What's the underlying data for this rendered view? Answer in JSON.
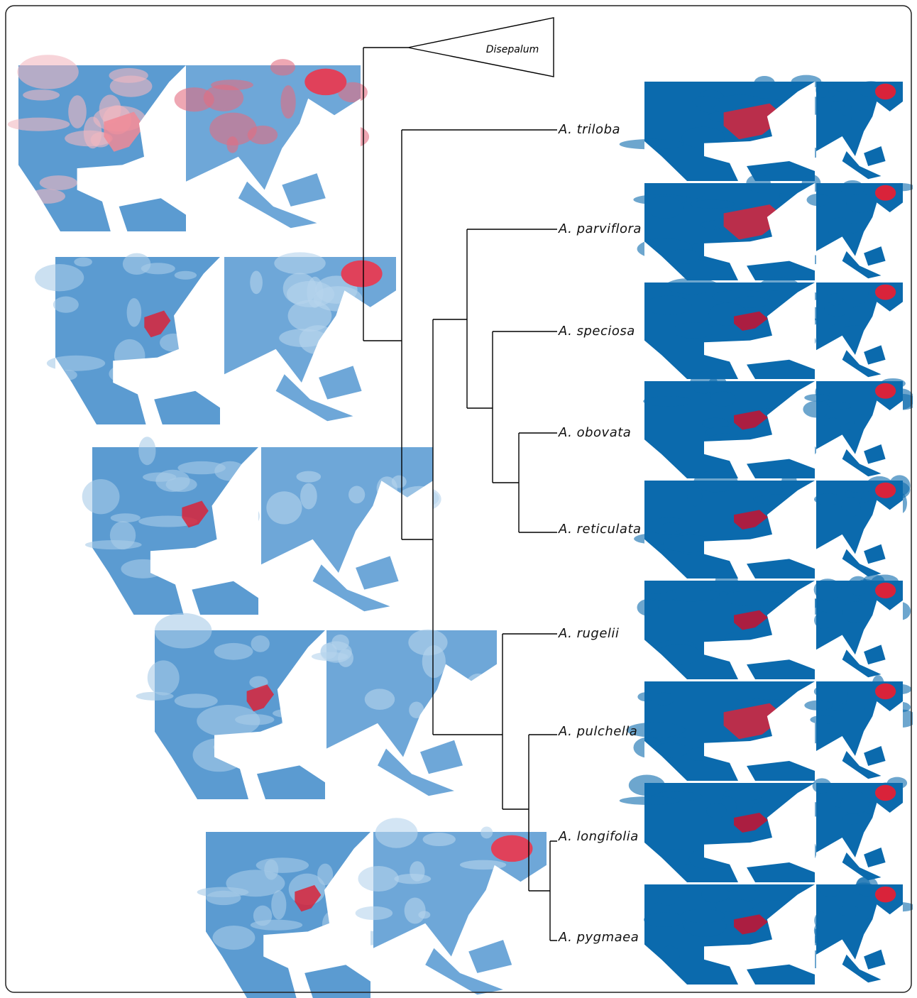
{
  "outgroup": {
    "label": "Disepalum"
  },
  "taxa": [
    "A. triloba",
    "A. parviflora",
    "A. speciosa",
    "A. obovata",
    "A. reticulata",
    "A. rugelii",
    "A. pulchella",
    "A. longifolia",
    "A. pygmaea"
  ]
}
